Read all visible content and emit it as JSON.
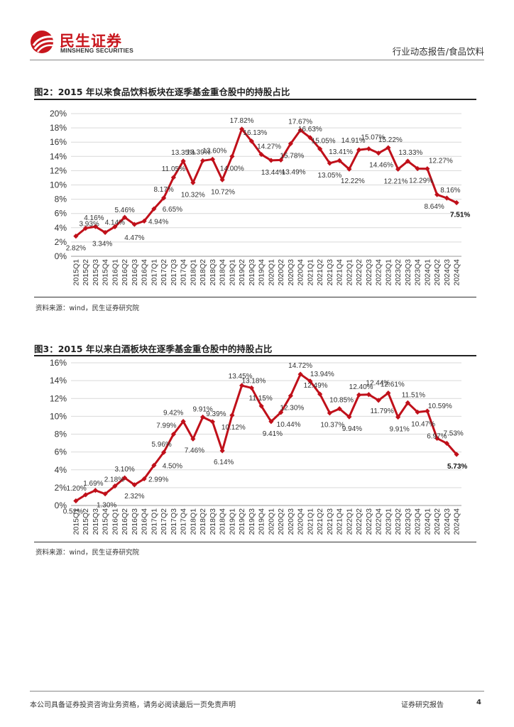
{
  "header": {
    "brand_cn": "民生证券",
    "brand_en": "MINSHENG SECURITIES",
    "section": "行业动态报告/食品饮料"
  },
  "figures": [
    {
      "title": "图2：2015 年以来食品饮料板块在逐季基金重仓股中的持股占比",
      "source": "资料来源：wind，民生证券研究院"
    },
    {
      "title": "图3：2015 年以来白酒板块在逐季基金重仓股中的持股占比",
      "source": "资料来源：wind，民生证券研究院"
    }
  ],
  "footer": {
    "disclaimer": "本公司具备证券投资咨询业务资格，请务必阅读最后一页免责声明",
    "doc_type": "证券研究报告",
    "page": "4"
  },
  "colors": {
    "line": "#c0101a",
    "brand": "#c8161d",
    "grid": "#d9d9d9"
  },
  "chart_data": [
    {
      "type": "line",
      "ylim": [
        0,
        20
      ],
      "yticks": [
        "0%",
        "2%",
        "4%",
        "6%",
        "8%",
        "10%",
        "12%",
        "14%",
        "16%",
        "18%",
        "20%"
      ],
      "categories": [
        "2015Q1",
        "2015Q2",
        "2015Q3",
        "2015Q4",
        "2016Q1",
        "2016Q2",
        "2016Q3",
        "2016Q4",
        "2017Q1",
        "2017Q2",
        "2017Q3",
        "2017Q4",
        "2018Q1",
        "2018Q2",
        "2018Q3",
        "2018Q4",
        "2019Q1",
        "2019Q2",
        "2019Q3",
        "2019Q4",
        "2020Q1",
        "2020Q2",
        "2020Q3",
        "2020Q4",
        "2021Q1",
        "2021Q2",
        "2021Q3",
        "2021Q4",
        "2022Q1",
        "2022Q2",
        "2022Q3",
        "2022Q4",
        "2023Q1",
        "2023Q2",
        "2023Q3",
        "2023Q4",
        "2024Q1",
        "2024Q2",
        "2024Q3",
        "2024Q4"
      ],
      "values": [
        2.82,
        3.93,
        4.16,
        3.34,
        4.14,
        5.46,
        4.47,
        4.94,
        6.65,
        8.17,
        11.05,
        13.35,
        10.32,
        13.39,
        13.6,
        10.72,
        14.0,
        17.82,
        16.13,
        14.27,
        13.44,
        13.49,
        15.78,
        17.67,
        16.63,
        15.05,
        13.05,
        13.41,
        12.22,
        14.91,
        15.07,
        14.46,
        15.22,
        12.21,
        13.33,
        12.29,
        12.27,
        8.64,
        8.16,
        7.51
      ],
      "labels": [
        "2.82%",
        "3.93%",
        "4.16%",
        "3.34%",
        "4.14%",
        "5.46%",
        "4.47%",
        "4.94%",
        "6.65%",
        "8.17%",
        "11.05%",
        "13.35%",
        "10.32%",
        "13.39%",
        "13.60%",
        "10.72%",
        "14.00%",
        "17.82%",
        "16.13%",
        "14.27%",
        "13.44%",
        "13.49%",
        "15.78%",
        "17.67%",
        "16.63%",
        "15.05%",
        "13.05%",
        "13.41%",
        "12.22%",
        "14.91%",
        "15.07%",
        "14.46%",
        "15.22%",
        "12.21%",
        "13.33%",
        "12.29%",
        "12.27%",
        "8.64%",
        "8.16%",
        "7.51%"
      ]
    },
    {
      "type": "line",
      "ylim": [
        0,
        16
      ],
      "yticks": [
        "0%",
        "2%",
        "4%",
        "6%",
        "8%",
        "10%",
        "12%",
        "14%",
        "16%"
      ],
      "categories": [
        "2015Q1",
        "2015Q2",
        "2015Q3",
        "2015Q4",
        "2016Q1",
        "2016Q2",
        "2016Q3",
        "2016Q4",
        "2017Q1",
        "2017Q2",
        "2017Q3",
        "2017Q4",
        "2018Q1",
        "2018Q2",
        "2018Q3",
        "2018Q4",
        "2019Q1",
        "2019Q2",
        "2019Q3",
        "2019Q4",
        "2020Q1",
        "2020Q2",
        "2020Q3",
        "2020Q4",
        "2021Q1",
        "2021Q2",
        "2021Q3",
        "2021Q4",
        "2022Q1",
        "2022Q2",
        "2022Q3",
        "2022Q4",
        "2023Q1",
        "2023Q2",
        "2023Q3",
        "2023Q4",
        "2024Q1",
        "2024Q2",
        "2024Q3",
        "2024Q4"
      ],
      "values": [
        0.52,
        1.2,
        1.69,
        1.3,
        2.18,
        3.1,
        2.32,
        2.99,
        4.5,
        5.96,
        7.99,
        9.42,
        7.46,
        9.91,
        9.39,
        6.14,
        10.12,
        13.45,
        13.18,
        11.15,
        9.41,
        10.44,
        12.3,
        14.72,
        13.94,
        12.49,
        10.37,
        10.85,
        9.94,
        12.4,
        12.44,
        11.79,
        12.61,
        9.91,
        11.51,
        10.47,
        10.59,
        7.53,
        6.97,
        5.73
      ],
      "labels": [
        "0.52%",
        "1.20%",
        "1.69%",
        "1.30%",
        "2.18%",
        "3.10%",
        "2.32%",
        "2.99%",
        "4.50%",
        "5.96%",
        "7.99%",
        "9.42%",
        "7.46%",
        "9.91%",
        "9.39%",
        "6.14%",
        "10.12%",
        "13.45%",
        "13.18%",
        "11.15%",
        "9.41%",
        "10.44%",
        "12.30%",
        "14.72%",
        "13.94%",
        "12.49%",
        "10.37%",
        "10.85%",
        "9.94%",
        "12.40%",
        "12.44%",
        "11.79%",
        "12.61%",
        "9.91%",
        "11.51%",
        "10.47%",
        "10.59%",
        "7.53%",
        "6.97%",
        "5.73%"
      ]
    }
  ]
}
